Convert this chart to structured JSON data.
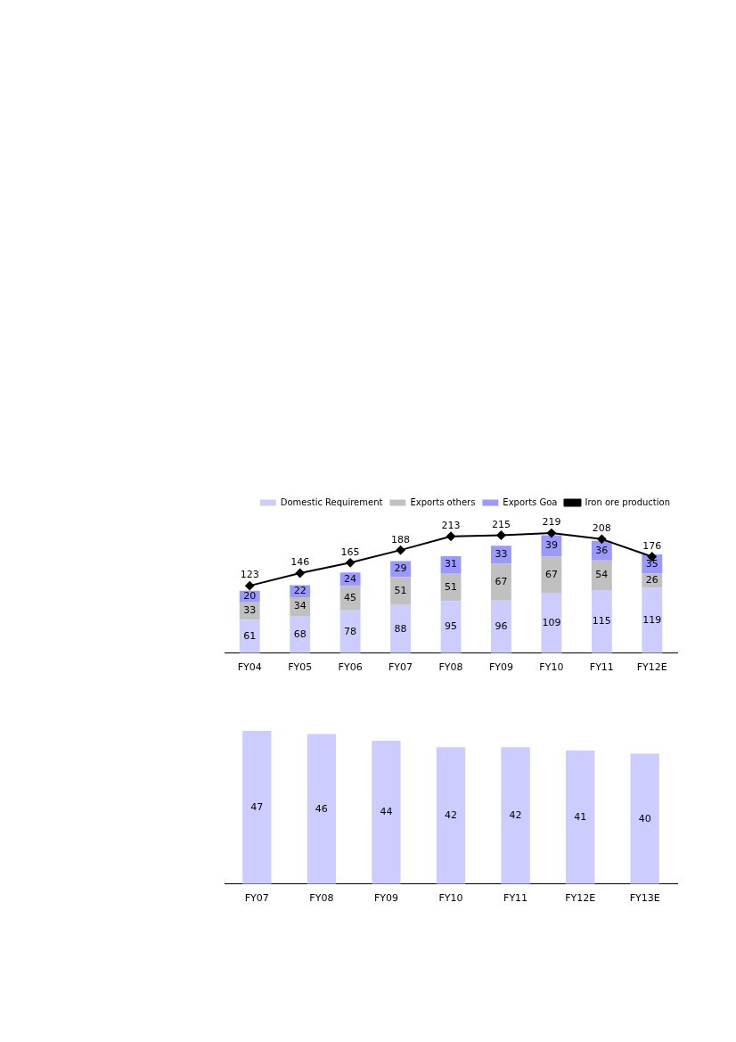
{
  "chart_data": [
    {
      "type": "bar",
      "stacked": true,
      "categories": [
        "FY04",
        "FY05",
        "FY06",
        "FY07",
        "FY08",
        "FY09",
        "FY10",
        "FY11",
        "FY12E"
      ],
      "series": [
        {
          "name": "Domestic Requirement",
          "color": "#ccccff",
          "values": [
            61,
            68,
            78,
            88,
            95,
            96,
            109,
            115,
            119
          ]
        },
        {
          "name": "Exports others",
          "color": "#c0c0c0",
          "values": [
            33,
            34,
            45,
            51,
            51,
            67,
            67,
            54,
            26
          ]
        },
        {
          "name": "Exports Goa",
          "color": "#9999ff",
          "values": [
            20,
            22,
            24,
            29,
            31,
            33,
            39,
            36,
            35
          ]
        },
        {
          "name": "Iron ore production",
          "type": "line",
          "color": "#000000",
          "marker": "diamond",
          "values": [
            123,
            146,
            165,
            188,
            213,
            215,
            219,
            208,
            176
          ]
        }
      ],
      "data_labels": true,
      "legend": "top",
      "grid": false,
      "tick_labels": "x"
    },
    {
      "type": "bar",
      "categories": [
        "FY07",
        "FY08",
        "FY09",
        "FY10",
        "FY11",
        "FY12E",
        "FY13E"
      ],
      "values": [
        47,
        46,
        44,
        42,
        42,
        41,
        40
      ],
      "color": "#ccccff",
      "data_labels": true,
      "legend": false,
      "grid": false,
      "tick_labels": "x"
    }
  ]
}
